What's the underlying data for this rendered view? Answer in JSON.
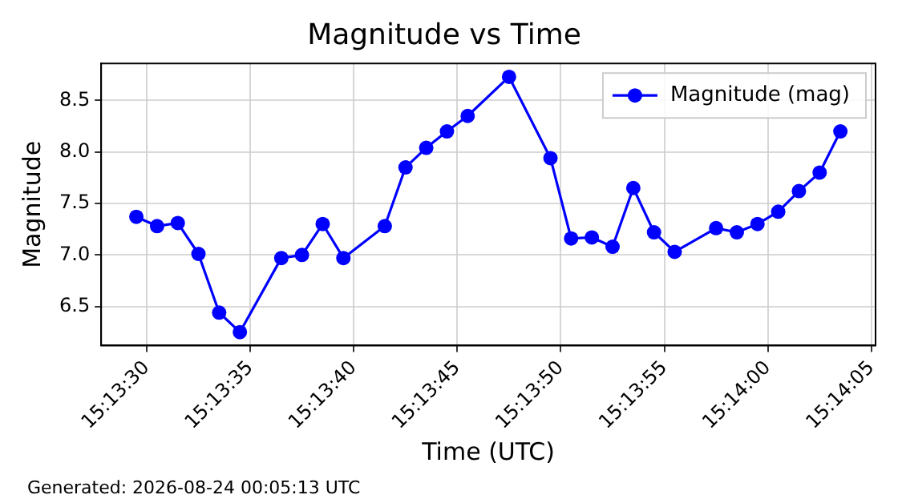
{
  "chart_data": {
    "type": "line",
    "title": "Magnitude vs Time",
    "xlabel": "Time (UTC)",
    "ylabel": "Magnitude",
    "x": [
      15.224861,
      15.225139,
      15.225417,
      15.225694,
      15.225972,
      15.22625,
      15.226806,
      15.227083,
      15.227361,
      15.227639,
      15.228194,
      15.228472,
      15.22875,
      15.229028,
      15.229306,
      15.229861,
      15.230417,
      15.230694,
      15.230972,
      15.23125,
      15.231528,
      15.231806,
      15.232083,
      15.232639,
      15.232917,
      15.233194,
      15.233472,
      15.23375,
      15.234028,
      15.234306
    ],
    "series": [
      {
        "name": "Magnitude (mag)",
        "color": "#0000ff",
        "values": [
          7.37,
          7.28,
          7.31,
          7.01,
          6.44,
          6.25,
          6.97,
          7.0,
          7.3,
          6.97,
          7.28,
          7.85,
          8.04,
          8.2,
          8.35,
          8.73,
          7.94,
          7.16,
          7.17,
          7.08,
          7.65,
          7.22,
          7.03,
          7.26,
          7.22,
          7.3,
          7.42,
          7.62,
          7.8,
          8.2
        ]
      }
    ],
    "xlim": [
      15.224389,
      15.234778
    ],
    "xticks": [
      {
        "value": 15.225,
        "label": "15:13:30"
      },
      {
        "value": 15.226389,
        "label": "15:13:35"
      },
      {
        "value": 15.227778,
        "label": "15:13:40"
      },
      {
        "value": 15.229167,
        "label": "15:13:45"
      },
      {
        "value": 15.230556,
        "label": "15:13:50"
      },
      {
        "value": 15.231944,
        "label": "15:13:55"
      },
      {
        "value": 15.233333,
        "label": "15:14:00"
      },
      {
        "value": 15.234722,
        "label": "15:14:05"
      }
    ],
    "ylim": [
      6.12,
      8.86
    ],
    "yticks": [
      6.5,
      {
        "value": 7,
        "label": "7.0"
      },
      7.5,
      {
        "value": 8,
        "label": "8.0"
      },
      8.5
    ],
    "grid": true,
    "legend": "top right",
    "marker": "circle",
    "line_style": "solid",
    "annotations": [
      "Generated: 2026-08-24 00:05:13 UTC"
    ]
  }
}
